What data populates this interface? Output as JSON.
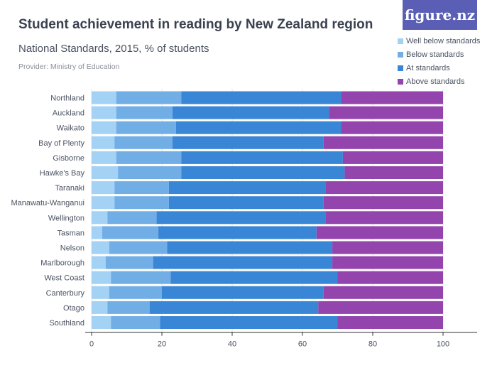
{
  "header": {
    "title": "Student achievement in reading by New Zealand region",
    "subtitle": "National Standards, 2015, % of students",
    "provider": "Provider: Ministry of Education",
    "brand": "figure.nz"
  },
  "colors": {
    "well_below": "#a3d2f5",
    "below": "#72aee6",
    "at": "#3a86d6",
    "above": "#9344ad",
    "axis_text": "#4a5160",
    "grid": "#e6e6e6"
  },
  "chart_data": {
    "type": "bar",
    "orientation": "horizontal",
    "stacked": true,
    "categories": [
      "Northland",
      "Auckland",
      "Waikato",
      "Bay of Plenty",
      "Gisborne",
      "Hawke's Bay",
      "Taranaki",
      "Manawatu-Wanganui",
      "Wellington",
      "Tasman",
      "Nelson",
      "Marlborough",
      "West Coast",
      "Canterbury",
      "Otago",
      "Southland"
    ],
    "series": [
      {
        "name": "Well below standards",
        "values": [
          7,
          7,
          7,
          6.5,
          7,
          7.5,
          6.5,
          6.5,
          4.5,
          3,
          5,
          4,
          5.5,
          5,
          4.5,
          5.5
        ]
      },
      {
        "name": "Below standards",
        "values": [
          18.5,
          16,
          17,
          16.5,
          18.5,
          18,
          15.5,
          15.5,
          14,
          16,
          16.5,
          13.5,
          17,
          15,
          12,
          14
        ]
      },
      {
        "name": "At standards",
        "values": [
          45.5,
          44.5,
          47,
          43,
          46,
          46.5,
          44.5,
          44,
          48,
          45,
          47,
          51,
          47.5,
          46,
          48,
          50.5
        ]
      },
      {
        "name": "Above standards",
        "values": [
          29,
          32.5,
          29,
          34,
          28.5,
          28,
          33.5,
          34,
          33.5,
          36,
          31.5,
          31.5,
          30,
          34,
          35.5,
          30
        ]
      }
    ],
    "xlim": [
      0,
      100
    ],
    "xticks": [
      0,
      20,
      40,
      60,
      80,
      100
    ],
    "legend_position": "top-right",
    "grid": true
  }
}
